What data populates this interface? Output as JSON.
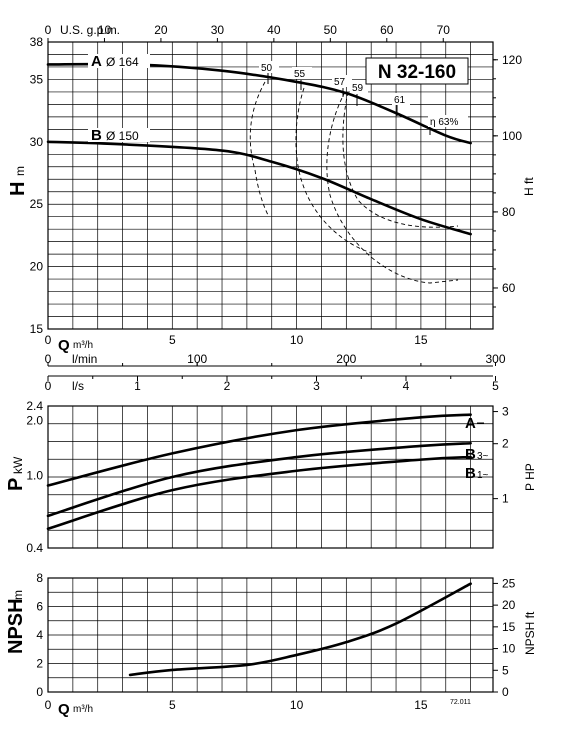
{
  "model": "N 32-160",
  "code": "72.011",
  "units": {
    "top_axis": "U.S. g.p.m.",
    "q_m3h": "m³/h",
    "q_lmin": "l/min",
    "q_ls": "l/s",
    "h_m": "m",
    "h_ft": "H ft",
    "p_kw": "kW",
    "p_hp": "P HP",
    "npsh_m": "m",
    "npsh_ft": "NPSH ft"
  },
  "symbols": {
    "H": "H",
    "Q": "Q",
    "P": "P",
    "NPSH": "NPSH"
  },
  "curve_labels": {
    "A": "A",
    "A_dia": "Ø 164",
    "B": "B",
    "B_dia": "Ø 150",
    "B3": "B",
    "B3_sup": "3~",
    "B1": "B",
    "B1_sup": "1~",
    "PA": "A"
  },
  "ticks": {
    "gpm": [
      "0",
      "10",
      "20",
      "30",
      "40",
      "50",
      "60",
      "70"
    ],
    "q_m3h": [
      "0",
      "5",
      "10",
      "15"
    ],
    "lmin": [
      "0",
      "100",
      "200",
      "300"
    ],
    "ls": [
      "0",
      "1",
      "2",
      "3",
      "4",
      "5"
    ],
    "h_m": [
      "15",
      "20",
      "25",
      "30",
      "35",
      "38"
    ],
    "h_ft": [
      "60",
      "80",
      "100",
      "120"
    ],
    "p_kw": [
      "0.4",
      "1.0",
      "2.0",
      "2.4"
    ],
    "p_hp": [
      "1",
      "2",
      "3"
    ],
    "npsh_m": [
      "0",
      "2",
      "4",
      "6",
      "8"
    ],
    "npsh_ft": [
      "0",
      "5",
      "10",
      "15",
      "20",
      "25"
    ]
  },
  "chart_data": [
    {
      "type": "line",
      "title": "N 32-160",
      "xlabel": "Q m³/h",
      "ylabel": "H m",
      "y2label": "H ft",
      "xlim": [
        0,
        17.9
      ],
      "ylim": [
        15,
        38
      ],
      "series": [
        {
          "name": "A Ø 164",
          "x": [
            0,
            3.5,
            7,
            10,
            12,
            14,
            16,
            17
          ],
          "y": [
            36.2,
            36.2,
            35.7,
            34.8,
            33.9,
            32.3,
            30.5,
            29.9
          ]
        },
        {
          "name": "B Ø 150",
          "x": [
            0,
            3,
            7,
            9,
            11,
            13,
            15,
            17
          ],
          "y": [
            30.0,
            29.8,
            29.3,
            28.4,
            27.1,
            25.4,
            23.8,
            22.6
          ]
        }
      ],
      "efficiency_labels": [
        "50",
        "55",
        "57",
        "59",
        "61",
        "η 63%"
      ]
    },
    {
      "type": "line",
      "xlabel": "Q m³/h",
      "ylabel": "P kW",
      "y2label": "P HP",
      "xlim": [
        0,
        17.9
      ],
      "ylim": [
        0.4,
        2.4
      ],
      "series": [
        {
          "name": "A",
          "x": [
            0,
            5,
            10,
            15,
            17
          ],
          "y": [
            0.88,
            1.32,
            1.77,
            2.08,
            2.15
          ]
        },
        {
          "name": "B 3~",
          "x": [
            0,
            5,
            10,
            15,
            17
          ],
          "y": [
            0.6,
            0.98,
            1.26,
            1.45,
            1.5
          ]
        },
        {
          "name": "B 1~",
          "x": [
            0,
            5,
            10,
            15,
            17
          ],
          "y": [
            0.51,
            0.83,
            1.06,
            1.22,
            1.26
          ]
        }
      ]
    },
    {
      "type": "line",
      "xlabel": "Q m³/h",
      "ylabel": "NPSH m",
      "y2label": "NPSH ft",
      "xlim": [
        0,
        17.9
      ],
      "ylim": [
        0,
        8
      ],
      "series": [
        {
          "name": "",
          "x": [
            3.3,
            5,
            8,
            10,
            12,
            14,
            17
          ],
          "y": [
            1.2,
            1.55,
            1.9,
            2.6,
            3.5,
            4.8,
            7.6
          ]
        }
      ]
    }
  ]
}
